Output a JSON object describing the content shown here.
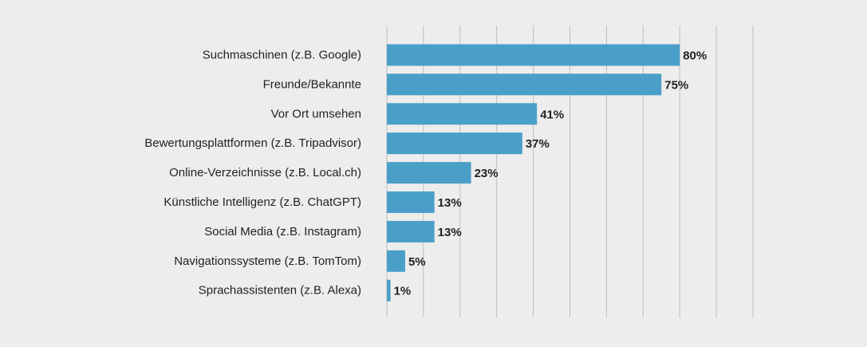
{
  "chart_data": {
    "type": "bar",
    "orientation": "horizontal",
    "categories": [
      "Suchmaschinen (z.B. Google)",
      "Freunde/Bekannte",
      "Vor Ort umsehen",
      "Bewertungsplattformen (z.B. Tripadvisor)",
      "Online-Verzeichnisse (z.B. Local.ch)",
      "Künstliche Intelligenz (z.B. ChatGPT)",
      "Social Media (z.B. Instagram)",
      "Navigationssysteme (z.B. TomTom)",
      "Sprachassistenten (z.B. Alexa)"
    ],
    "values": [
      80,
      75,
      41,
      37,
      23,
      13,
      13,
      5,
      1
    ],
    "value_labels": [
      "80%",
      "75%",
      "41%",
      "37%",
      "23%",
      "13%",
      "13%",
      "5%",
      "1%"
    ],
    "xlim": [
      0,
      100
    ],
    "gridlines": [
      0,
      10,
      20,
      30,
      40,
      50,
      60,
      70,
      80,
      90,
      100
    ],
    "grid": true,
    "bar_color": "#4a9fc8",
    "grid_color": "#bdbdbd",
    "text_color": "#222222",
    "background": "#ededed"
  }
}
